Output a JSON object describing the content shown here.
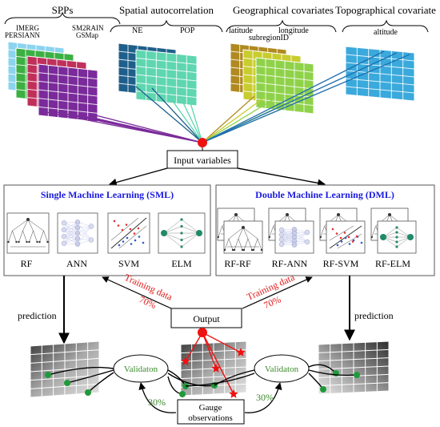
{
  "header": {
    "spps_title": "SPPs",
    "spps_labels": [
      "IMERG",
      "SM2RAIN",
      "PERSIANN",
      "GSMap"
    ],
    "spatial_title": "Spatial autocorrelation",
    "spatial_labels": [
      "NE",
      "POP"
    ],
    "geo_title": "Geographical covariates",
    "geo_labels": [
      "latitude",
      "longitude",
      "subregionID"
    ],
    "topo_title": "Topographical covariate",
    "topo_labels": [
      "altitude"
    ]
  },
  "input_box": "Input variables",
  "sml": {
    "title": "Single Machine Learning (SML)",
    "models": [
      "RF",
      "ANN",
      "SVM",
      "ELM"
    ]
  },
  "dml": {
    "title": "Double Machine Learning (DML)",
    "models": [
      "RF-RF",
      "RF-ANN",
      "RF-SVM",
      "RF-ELM"
    ]
  },
  "output_box": "Output",
  "training_left": {
    "line1": "Training data",
    "line2": "70%"
  },
  "training_right": {
    "line1": "Training data",
    "line2": "70%"
  },
  "prediction_left": "prediction",
  "prediction_right": "prediction",
  "validation_left": "Validaton",
  "validation_right": "Validaton",
  "pct_left": "30%",
  "pct_right": "30%",
  "gauge": {
    "line1": "Gauge",
    "line2": "observations"
  },
  "colors": {
    "title_blue": "#1a1adf",
    "red": "#e11a1a",
    "green_text": "#3a8a2a",
    "dot_red": "#ee1111",
    "dot_green": "#1f9a3a"
  }
}
